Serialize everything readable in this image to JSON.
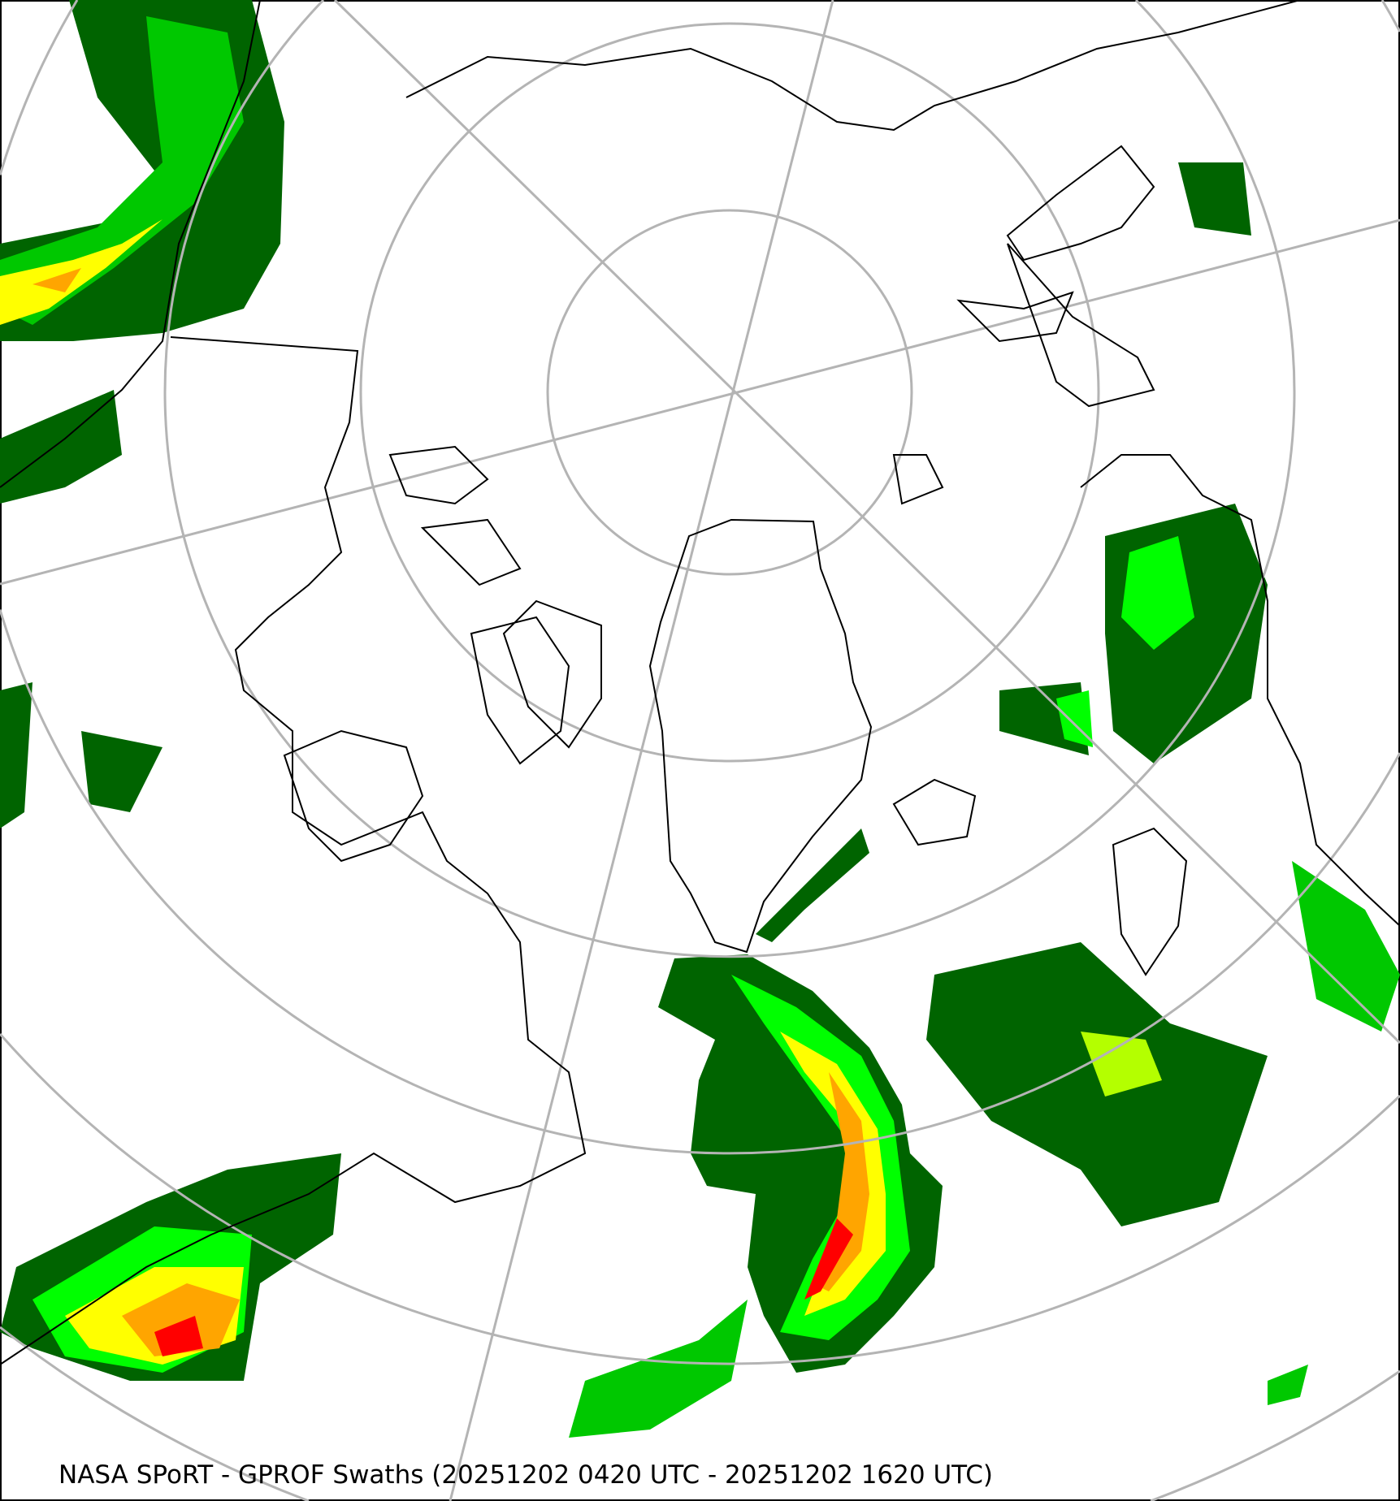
{
  "map": {
    "caption": "NASA SPoRT - GPROF Swaths (20251202 0420 UTC - 20251202 1620 UTC)",
    "projection": "north-polar-stereographic",
    "colors": {
      "graticule": "#b4b4b4",
      "coastline": "#000000",
      "precip_light_dark": "#006400",
      "precip_light": "#00a000",
      "precip_moderate": "#00ff00",
      "precip_moderate_high": "#b4ff00",
      "precip_heavy": "#ffff00",
      "precip_very_heavy": "#ffa500",
      "precip_extreme": "#ff0000"
    }
  }
}
